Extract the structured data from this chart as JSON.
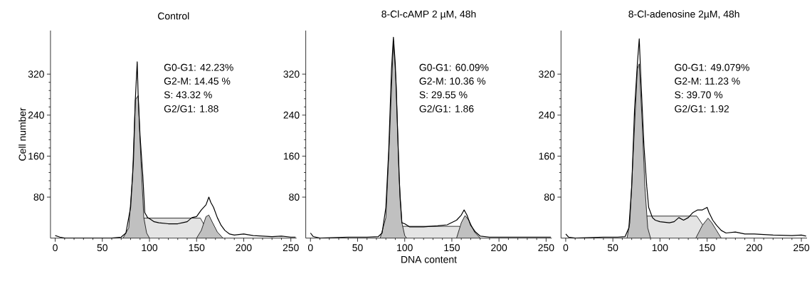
{
  "chart_data": [
    {
      "type": "line",
      "title": "Control",
      "ylabel": "Cell number",
      "xlim": [
        -5,
        256
      ],
      "ylim": [
        0,
        405
      ],
      "xticks": [
        0,
        50,
        100,
        150,
        200,
        250
      ],
      "yticks": [
        80,
        160,
        240,
        320
      ],
      "series": [
        {
          "color": "#000000",
          "x": [
            0,
            5,
            10,
            60,
            70,
            75,
            80,
            83,
            85,
            87,
            88,
            90,
            93,
            95,
            98,
            100,
            105,
            110,
            120,
            130,
            140,
            145,
            150,
            155,
            160,
            163,
            165,
            168,
            172,
            176,
            180,
            185,
            190,
            200,
            210,
            220,
            230,
            240,
            250,
            255
          ],
          "values": [
            5,
            2,
            0,
            0,
            2,
            10,
            60,
            150,
            270,
            344,
            280,
            200,
            120,
            50,
            40,
            38,
            32,
            30,
            28,
            28,
            32,
            40,
            42,
            55,
            65,
            80,
            70,
            60,
            40,
            25,
            15,
            8,
            6,
            8,
            5,
            4,
            3,
            4,
            2,
            2
          ]
        },
        {
          "type": "area",
          "color": "#e4e4e4",
          "x": [
            80,
            94,
            154,
            166
          ],
          "values": [
            0,
            39,
            39,
            0
          ]
        },
        {
          "type": "area",
          "color": "#c0c0c0",
          "x": [
            72,
            78,
            82,
            85,
            88,
            91,
            94,
            97,
            100
          ],
          "values": [
            0,
            20,
            120,
            270,
            278,
            150,
            40,
            10,
            0
          ]
        },
        {
          "type": "area",
          "color": "#c0c0c0",
          "x": [
            150,
            155,
            160,
            163,
            167,
            172,
            178
          ],
          "values": [
            0,
            15,
            42,
            45,
            30,
            12,
            0
          ]
        }
      ],
      "annotations": [
        "G0-G1: 42.23%",
        "G2-M: 14.45 %",
        "S: 43.32 %",
        "G2/G1: 1.88"
      ]
    },
    {
      "type": "line",
      "title": "8-Cl-cAMP 2 µM, 48h",
      "xlabel": "DNA content",
      "xlim": [
        -5,
        256
      ],
      "ylim": [
        0,
        405
      ],
      "xticks": [
        0,
        50,
        100,
        150,
        200,
        250
      ],
      "yticks": [
        80,
        160,
        240,
        320
      ],
      "series": [
        {
          "color": "#000000",
          "x": [
            0,
            3,
            10,
            40,
            60,
            72,
            76,
            80,
            83,
            86,
            88,
            90,
            93,
            95,
            97,
            100,
            105,
            120,
            135,
            145,
            155,
            160,
            163,
            166,
            170,
            175,
            180,
            190,
            220,
            255
          ],
          "values": [
            10,
            3,
            0,
            2,
            2,
            3,
            10,
            60,
            170,
            330,
            392,
            340,
            180,
            80,
            30,
            28,
            22,
            22,
            24,
            26,
            35,
            45,
            55,
            45,
            25,
            12,
            4,
            2,
            2,
            2
          ]
        },
        {
          "type": "area",
          "color": "#e4e4e4",
          "x": [
            84,
            92,
            158,
            170
          ],
          "values": [
            0,
            23,
            23,
            0
          ]
        },
        {
          "type": "area",
          "color": "#c0c0c0",
          "x": [
            74,
            80,
            84,
            88,
            91,
            94,
            97,
            100,
            102
          ],
          "values": [
            0,
            40,
            200,
            385,
            300,
            120,
            30,
            5,
            0
          ]
        },
        {
          "type": "area",
          "color": "#c0c0c0",
          "x": [
            155,
            160,
            164,
            168,
            174,
            180
          ],
          "values": [
            0,
            30,
            44,
            35,
            12,
            0
          ]
        }
      ],
      "annotations": [
        "G0-G1: 60.09%",
        "G2-M: 10.36 %",
        "S: 29.55 %",
        "G2/G1: 1.86"
      ]
    },
    {
      "type": "line",
      "title": "8-Cl-adenosine 2µM, 48h",
      "xlim": [
        -5,
        256
      ],
      "ylim": [
        0,
        405
      ],
      "xticks": [
        0,
        50,
        100,
        150,
        200,
        250
      ],
      "yticks": [
        80,
        160,
        240,
        320
      ],
      "series": [
        {
          "color": "#000000",
          "x": [
            0,
            3,
            10,
            40,
            55,
            63,
            67,
            70,
            73,
            76,
            78,
            80,
            83,
            86,
            88,
            92,
            95,
            100,
            110,
            115,
            120,
            125,
            130,
            135,
            140,
            145,
            150,
            152,
            156,
            160,
            165,
            170,
            180,
            190,
            200,
            220,
            240,
            250,
            255
          ],
          "values": [
            8,
            2,
            0,
            2,
            2,
            3,
            20,
            100,
            250,
            340,
            389,
            300,
            180,
            100,
            60,
            40,
            35,
            32,
            30,
            32,
            40,
            35,
            40,
            50,
            55,
            55,
            60,
            50,
            35,
            25,
            15,
            10,
            12,
            8,
            8,
            6,
            5,
            6,
            4
          ]
        },
        {
          "type": "area",
          "color": "#e4e4e4",
          "x": [
            74,
            84,
            139,
            155
          ],
          "values": [
            0,
            43,
            43,
            0
          ]
        },
        {
          "type": "area",
          "color": "#c0c0c0",
          "x": [
            65,
            68,
            72,
            76,
            78,
            81,
            84,
            87,
            90
          ],
          "values": [
            0,
            30,
            180,
            330,
            340,
            230,
            100,
            20,
            0
          ]
        },
        {
          "type": "area",
          "color": "#c0c0c0",
          "x": [
            138,
            145,
            151,
            155,
            160,
            165
          ],
          "values": [
            0,
            25,
            39,
            30,
            15,
            0
          ]
        }
      ],
      "annotations": [
        "G0-G1: 49.079%",
        "G2-M: 11.23 %",
        "S: 39.70 %",
        "G2/G1: 1.92"
      ]
    }
  ]
}
